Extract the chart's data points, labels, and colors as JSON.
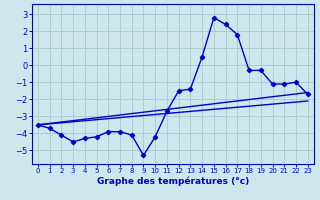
{
  "bg_color": "#cce8ec",
  "grid_color": "#aacdd4",
  "line_color": "#0000cc",
  "xlabel": "Graphe des températures (°c)",
  "xlim": [
    -0.5,
    23.5
  ],
  "ylim": [
    -5.8,
    3.6
  ],
  "yticks": [
    3,
    2,
    1,
    0,
    -1,
    -2,
    -3,
    -4,
    -5
  ],
  "xticks": [
    0,
    1,
    2,
    3,
    4,
    5,
    6,
    7,
    8,
    9,
    10,
    11,
    12,
    13,
    14,
    15,
    16,
    17,
    18,
    19,
    20,
    21,
    22,
    23
  ],
  "line1_x": [
    0,
    1,
    2,
    3,
    4,
    5,
    6,
    7,
    8,
    9,
    10,
    11,
    12,
    13,
    14,
    15,
    16,
    17,
    18,
    19,
    20,
    21,
    22,
    23
  ],
  "line1_y": [
    -3.5,
    -3.7,
    -4.1,
    -4.5,
    -4.3,
    -4.2,
    -3.9,
    -3.9,
    -4.1,
    -5.3,
    -4.2,
    -2.7,
    -1.5,
    -1.4,
    0.5,
    2.8,
    2.4,
    1.8,
    -0.3,
    -0.3,
    -1.1,
    -1.1,
    -1.0,
    -1.7
  ],
  "line2_x": [
    0,
    23
  ],
  "line2_y": [
    -3.5,
    -1.6
  ],
  "line3_x": [
    0,
    23
  ],
  "line3_y": [
    -3.5,
    -2.1
  ],
  "marker_style": "D",
  "marker_size": 2.2,
  "linewidth": 1.0,
  "xlabel_fontsize": 6.5,
  "xtick_fontsize": 5.0,
  "ytick_fontsize": 6.0
}
